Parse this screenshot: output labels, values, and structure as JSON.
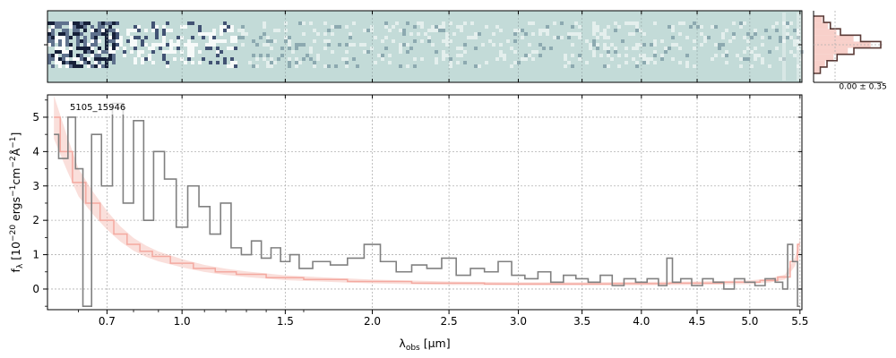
{
  "colors": {
    "background": "#ffffff",
    "spectrum": "#808080",
    "model": "#f4a9a0",
    "model_fill": "#f6c4bd",
    "histogram_line": "#5a3a36",
    "grid": "#b0b0b0",
    "spec2d_base": "#c3dbd8",
    "spec2d_dark": "#1c2a4a"
  },
  "chart_data": [
    {
      "id": "spectrum-1d",
      "type": "line",
      "title": "",
      "annotation": "5105_15946",
      "xlabel": "λobs [μm]",
      "xlabel_main": "λ",
      "xlabel_sub": "obs",
      "xlabel_unit": " [μm]",
      "ylabel": "fλ [10⁻²⁰ ergs⁻¹cm⁻²Å⁻¹]",
      "ylabel_main": "f",
      "ylabel_sub": "λ",
      "ylabel_rest": " [10",
      "ylabel_sup1": "−20",
      "ylabel_mid1": " ergs",
      "ylabel_sup2": "−1",
      "ylabel_mid2": "cm",
      "ylabel_sup3": "−2",
      "ylabel_mid3": "Å",
      "ylabel_sup4": "−1",
      "ylabel_end": "]",
      "xscale": "sqrt",
      "xlim": [
        0.5,
        5.52
      ],
      "ylim": [
        -0.6,
        5.65
      ],
      "xticks": [
        0.7,
        1.0,
        1.5,
        2.0,
        2.5,
        3.0,
        3.5,
        4.0,
        4.5,
        5.0,
        5.5
      ],
      "xtick_labels": [
        "0.7",
        "1.0",
        "1.5",
        "2.0",
        "2.5",
        "3.0",
        "3.5",
        "4.0",
        "4.5",
        "5.0",
        "5.5"
      ],
      "yticks": [
        0,
        1,
        2,
        3,
        4,
        5
      ],
      "ytick_labels": [
        "0",
        "1",
        "2",
        "3",
        "4",
        "5"
      ],
      "grid": true,
      "series": [
        {
          "kind": "spectrum",
          "x": [
            0.52,
            0.55,
            0.58,
            0.6,
            0.63,
            0.66,
            0.7,
            0.74,
            0.78,
            0.82,
            0.86,
            0.9,
            0.95,
            1.0,
            1.05,
            1.1,
            1.15,
            1.2,
            1.25,
            1.3,
            1.35,
            1.4,
            1.45,
            1.5,
            1.55,
            1.6,
            1.7,
            1.8,
            1.9,
            2.0,
            2.1,
            2.2,
            2.3,
            2.4,
            2.5,
            2.6,
            2.7,
            2.8,
            2.9,
            3.0,
            3.1,
            3.2,
            3.3,
            3.4,
            3.5,
            3.6,
            3.7,
            3.8,
            3.9,
            4.0,
            4.1,
            4.2,
            4.25,
            4.3,
            4.4,
            4.5,
            4.6,
            4.7,
            4.8,
            4.9,
            5.0,
            5.1,
            5.2,
            5.3,
            5.35,
            5.4,
            5.45,
            5.5
          ],
          "y": [
            4.5,
            3.8,
            5.0,
            3.5,
            -0.5,
            4.5,
            3.0,
            5.4,
            2.5,
            4.9,
            2.0,
            4.0,
            3.2,
            1.8,
            3.0,
            2.4,
            1.6,
            2.5,
            1.2,
            1.0,
            1.4,
            0.9,
            1.2,
            0.8,
            1.0,
            0.6,
            0.8,
            0.7,
            0.9,
            1.3,
            0.8,
            0.5,
            0.7,
            0.6,
            0.9,
            0.4,
            0.6,
            0.5,
            0.8,
            0.4,
            0.3,
            0.5,
            0.2,
            0.4,
            0.3,
            0.2,
            0.4,
            0.1,
            0.3,
            0.2,
            0.3,
            0.1,
            0.9,
            0.2,
            0.3,
            0.1,
            0.3,
            0.2,
            0.0,
            0.3,
            0.2,
            0.1,
            0.3,
            0.2,
            0.0,
            1.3,
            0.8,
            -0.5
          ]
        },
        {
          "kind": "model",
          "x": [
            0.52,
            0.56,
            0.6,
            0.65,
            0.7,
            0.75,
            0.8,
            0.85,
            0.9,
            1.0,
            1.1,
            1.2,
            1.3,
            1.5,
            1.7,
            2.0,
            2.5,
            3.0,
            3.5,
            4.0,
            4.5,
            5.0,
            5.2,
            5.35,
            5.45,
            5.5
          ],
          "y": [
            5.0,
            4.0,
            3.1,
            2.5,
            2.0,
            1.6,
            1.3,
            1.1,
            0.95,
            0.75,
            0.6,
            0.5,
            0.43,
            0.33,
            0.28,
            0.22,
            0.17,
            0.15,
            0.15,
            0.16,
            0.17,
            0.2,
            0.25,
            0.35,
            0.8,
            1.3
          ]
        }
      ]
    },
    {
      "id": "spectrum-2d",
      "type": "heatmap",
      "xlim": [
        0.5,
        5.52
      ]
    },
    {
      "id": "residual-histogram",
      "type": "bar",
      "annotation": "0.00 ± 0.35",
      "bins": [
        -1.0,
        -0.75,
        -0.5,
        -0.25,
        0.0,
        0.25,
        0.5,
        0.75,
        1.0
      ],
      "counts": [
        0.15,
        0.25,
        0.4,
        0.7,
        1.0,
        0.6,
        0.35,
        0.2,
        0.1
      ]
    }
  ]
}
